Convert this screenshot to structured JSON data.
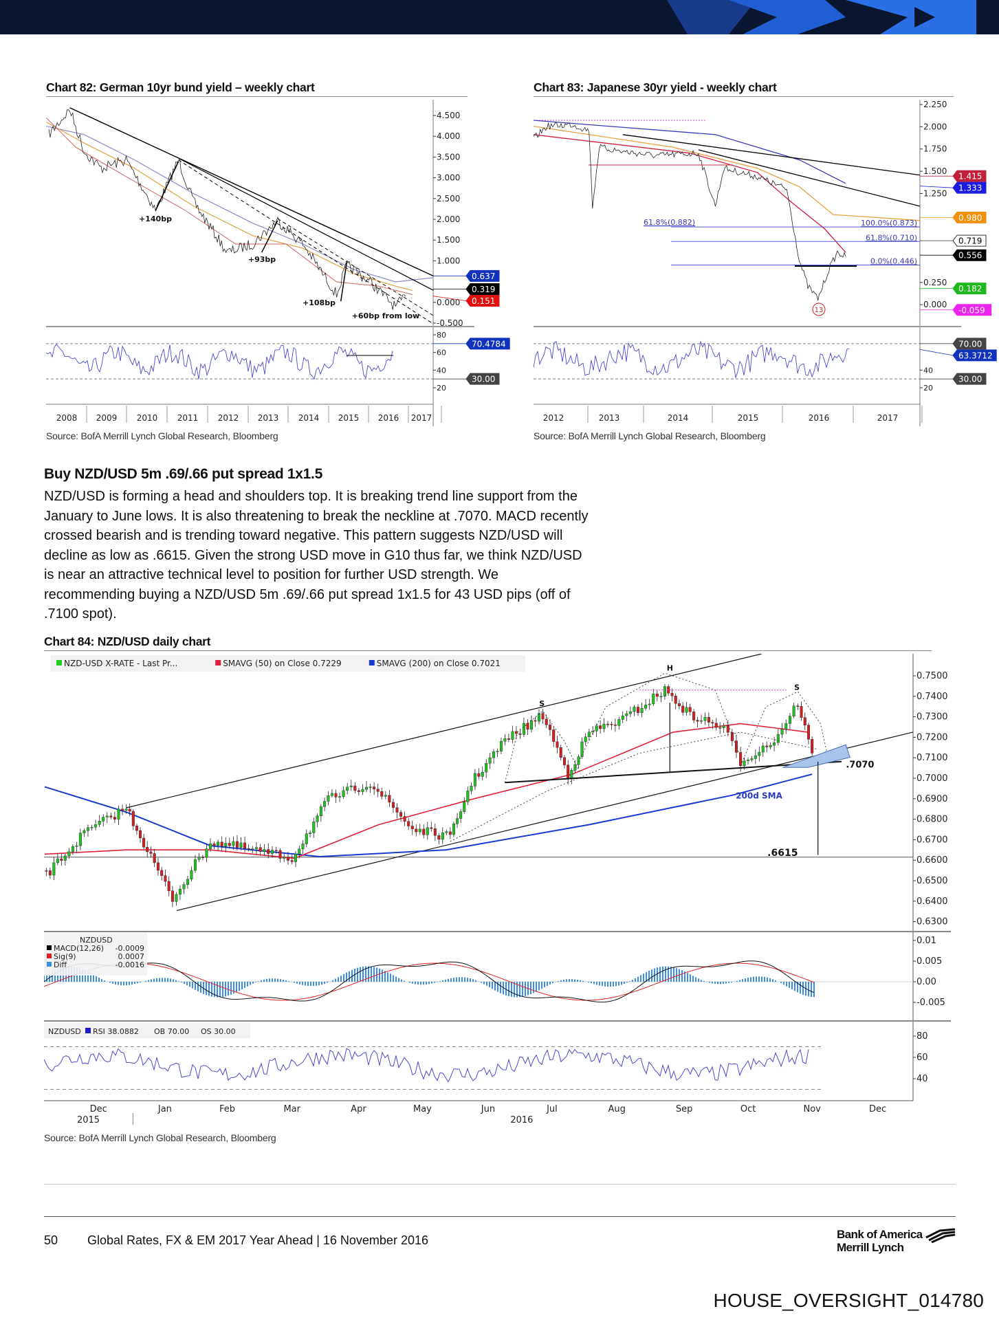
{
  "header_band": {
    "colors": {
      "background": "#0b1631",
      "accent": "#1f5fd1"
    }
  },
  "chart82": {
    "title": "Chart 82: German 10yr bund yield – weekly chart",
    "source": "Source: BofA Merrill Lynch Global Research, Bloomberg",
    "y_ticks": [
      "4.500",
      "4.000",
      "3.500",
      "3.000",
      "2.500",
      "2.000",
      "1.500",
      "1.000",
      "0.000",
      "-0.500"
    ],
    "value_tags": [
      {
        "text": "0.637",
        "color": "#1133bb"
      },
      {
        "text": "0.319",
        "color": "#000000"
      },
      {
        "text": "0.151",
        "color": "#e01010"
      }
    ],
    "rsi_ticks": [
      "80",
      "60",
      "40",
      "20"
    ],
    "rsi_tags": [
      {
        "text": "70.4784",
        "color": "#1133bb"
      },
      {
        "text": "30.00",
        "color": "#444444"
      }
    ],
    "x_ticks": [
      "2008",
      "2009",
      "2010",
      "2011",
      "2012",
      "2013",
      "2014",
      "2015",
      "2016",
      "2017"
    ],
    "annotations": [
      "+140bp",
      "+93bp",
      "+108bp",
      "+60bp from low"
    ]
  },
  "chart83": {
    "title": "Chart 83: Japanese 30yr yield - weekly chart",
    "source": "Source: BofA Merrill Lynch Global Research, Bloomberg",
    "y_ticks": [
      "2.250",
      "2.000",
      "1.750",
      "1.500",
      "1.250",
      "0.250",
      "0.000"
    ],
    "value_tags": [
      {
        "text": "1.415",
        "color": "#c0203a"
      },
      {
        "text": "1.333",
        "color": "#1a1ae0"
      },
      {
        "text": "0.980",
        "color": "#f0900a"
      },
      {
        "text": "0.719",
        "color": "#ffffff"
      },
      {
        "text": "0.556",
        "color": "#000000"
      },
      {
        "text": "0.182",
        "color": "#1cb81c"
      },
      {
        "text": "-0.059",
        "color": "#ee22ee"
      }
    ],
    "fib_labels": [
      "100.0%(0.873)",
      "61.8%(0.710)",
      "0.0%(0.446)",
      "61.8%(0.882)"
    ],
    "rsi_ticks": [
      "40",
      "20"
    ],
    "rsi_tags": [
      {
        "text": "70.00",
        "color": "#444444"
      },
      {
        "text": "63.3712",
        "color": "#1133bb"
      },
      {
        "text": "30.00",
        "color": "#444444"
      }
    ],
    "x_ticks": [
      "2012",
      "2013",
      "2014",
      "2015",
      "2016",
      "2017"
    ],
    "annotations": [
      "13"
    ]
  },
  "section": {
    "heading": "Buy NZD/USD 5m .69/.66 put spread 1x1.5",
    "paragraph_lines": [
      "NZD/USD is forming a head and shoulders top. It is breaking trend line support from the",
      "January to June lows. It is also threatening to break the neckline at .7070. MACD recently",
      "crossed bearish and is trending toward negative. This pattern suggests NZD/USD will",
      "decline as low as .6615. Given the strong USD move in G10 thus far, we think NZD/USD",
      "is near an attractive technical level to position for further USD strength. We",
      "recommending buying a NZD/USD 5m .69/.66 put spread 1x1.5 for 43 USD pips (off of",
      ".7100 spot)."
    ]
  },
  "chart84": {
    "title": "Chart 84: NZD/USD daily chart",
    "source": "Source: BofA Merrill Lynch Global Research, Bloomberg",
    "legend": [
      {
        "text": "NZD-USD X-RATE - Last Pr...",
        "color": "#22cc22"
      },
      {
        "text": "SMAVG (50) on Close 0.7229",
        "color": "#e0203a"
      },
      {
        "text": "SMAVG (200) on Close 0.7021",
        "color": "#1a3ad0"
      }
    ],
    "y_ticks": [
      "0.7500",
      "0.7400",
      "0.7300",
      "0.7200",
      "0.7100",
      "0.7000",
      "0.6900",
      "0.6800",
      "0.6700",
      "0.6600",
      "0.6500",
      "0.6400",
      "0.6300"
    ],
    "macd_ticks": [
      "0.01",
      "0.005",
      "0.00",
      "-0.005"
    ],
    "macd_legend": {
      "title": "NZDUSD",
      "rows": [
        {
          "label": "MACD(12,26)",
          "value": "-0.0009",
          "color": "#000000"
        },
        {
          "label": "Sig(9)",
          "value": "0.0007",
          "color": "#e02020"
        },
        {
          "label": "Diff",
          "value": "-0.0016",
          "color": "#3a8de0"
        }
      ]
    },
    "rsi_legend": [
      "NZDUSD",
      "RSI 38.0882",
      "OB 70.00",
      "OS 30.00"
    ],
    "rsi_ticks": [
      "80",
      "60",
      "40"
    ],
    "x_months": [
      "Dec",
      "Jan",
      "Feb",
      "Mar",
      "Apr",
      "May",
      "Jun",
      "Jul",
      "Aug",
      "Sep",
      "Oct",
      "Nov",
      "Dec"
    ],
    "x_years": [
      "2015",
      "2016"
    ],
    "annotations": {
      "neckline": ".7070",
      "target": ".6615",
      "sma": "200d SMA",
      "head": "H",
      "shoulder_left": "S",
      "shoulder_right": "S"
    }
  },
  "footer": {
    "page_number": "50",
    "text": "Global Rates, FX & EM 2017 Year Ahead | 16 November 2016",
    "logo_line1": "Bank of America",
    "logo_line2": "Merrill Lynch",
    "stamp": "HOUSE_OVERSIGHT_014780"
  }
}
